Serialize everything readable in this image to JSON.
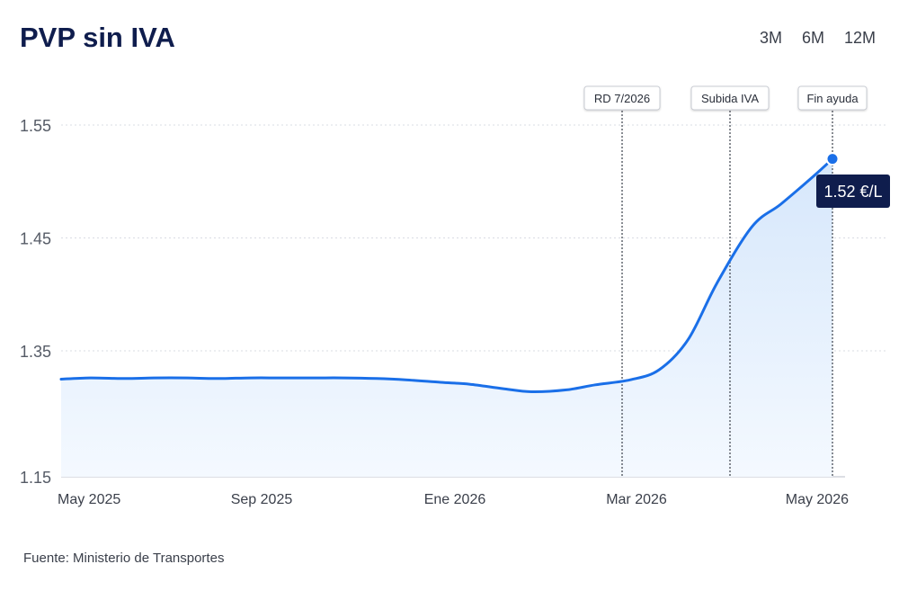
{
  "header": {
    "title": "PVP sin IVA",
    "ranges": [
      "3M",
      "6M",
      "12M"
    ]
  },
  "footer": {
    "source": "Fuente: Ministerio de Transportes"
  },
  "colors": {
    "line": "#1a6fe8",
    "area_top": "#d6e7fb",
    "area_bottom": "#f4f9ff",
    "tooltip_bg": "#0f1d4d",
    "grid": "#d9dce3"
  },
  "chart_data": {
    "type": "area",
    "title": "PVP sin IVA",
    "xlabel": "",
    "ylabel": "",
    "ylim": [
      1.15,
      1.55
    ],
    "y_ticks": [
      "1.55",
      "1.45",
      "1.35",
      "1.15"
    ],
    "x_ticks": [
      "May 2025",
      "Sep 2025",
      "Ene 2026",
      "Mar 2026",
      "May 2026"
    ],
    "grid": true,
    "series": [
      {
        "x": [
          "2025-05-01",
          "2025-05-15",
          "2025-06-01",
          "2025-06-15",
          "2025-07-01",
          "2025-07-15",
          "2025-08-01",
          "2025-08-15",
          "2025-09-01",
          "2025-09-15",
          "2025-10-01",
          "2025-10-15",
          "2025-11-01",
          "2025-11-15",
          "2025-12-01",
          "2025-12-15",
          "2026-01-01",
          "2026-01-15",
          "2026-02-01",
          "2026-02-15",
          "2026-03-01",
          "2026-03-15",
          "2026-04-01",
          "2026-04-15",
          "2026-05-01",
          "2026-05-10"
        ],
        "y": [
          1.305,
          1.307,
          1.306,
          1.307,
          1.307,
          1.306,
          1.307,
          1.307,
          1.307,
          1.307,
          1.306,
          1.304,
          1.3,
          1.297,
          1.29,
          1.285,
          1.288,
          1.296,
          1.304,
          1.32,
          1.36,
          1.41,
          1.46,
          1.48,
          1.505,
          1.52
        ]
      }
    ],
    "annotations": [
      {
        "label": "RD 7/2026",
        "x": "2026-02-15"
      },
      {
        "label": "Subida IVA",
        "x": "2026-03-28"
      },
      {
        "label": "Fin ayuda",
        "x": "2026-05-10"
      }
    ],
    "highlight": {
      "x": "2026-05-10",
      "y": 1.52,
      "label": "1.52 €/L"
    }
  }
}
